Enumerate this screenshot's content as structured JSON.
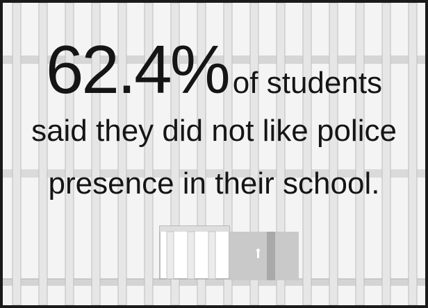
{
  "stat": {
    "value": "62.4%",
    "line1_tail": "of students",
    "line2": "said they did not like police",
    "line3": "presence in their school."
  },
  "colors": {
    "border": "#1a1a1a",
    "background": "#f4f4f4",
    "bar_fill": "#e4e4e4",
    "bar_edge": "#b9b9b9",
    "crossbar": "#d2d2d2",
    "lock": "#c6c6c6",
    "text": "#151515"
  }
}
